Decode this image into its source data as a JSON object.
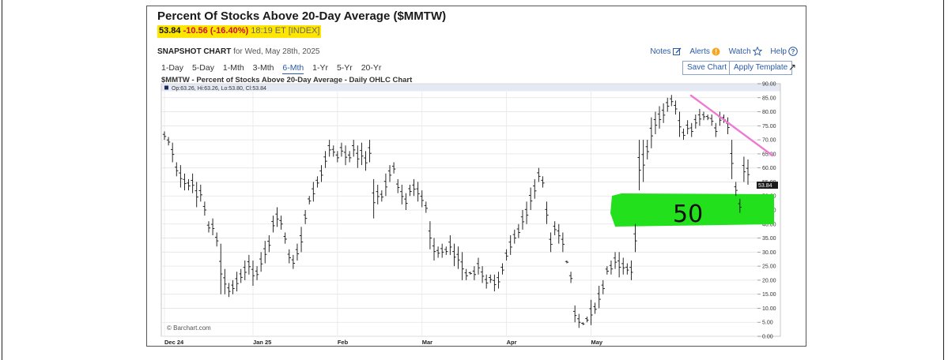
{
  "header": {
    "title": "Percent Of Stocks Above 20-Day Average ($MMTW)",
    "last": "53.84",
    "change": "-10.56 (-16.40%)",
    "time": "18:19 ET [INDEX]"
  },
  "snapshot": {
    "label": "SNAPSHOT CHART",
    "date": "for Wed, May 28th, 2025"
  },
  "links": {
    "notes": "Notes",
    "alerts": "Alerts",
    "watch": "Watch",
    "help": "Help"
  },
  "ranges": [
    "1-Day",
    "5-Day",
    "1-Mth",
    "3-Mth",
    "6-Mth",
    "1-Yr",
    "5-Yr",
    "20-Yr"
  ],
  "active_range": "6-Mth",
  "buttons": {
    "save": "Save Chart",
    "apply": "Apply Template"
  },
  "chart_title": "$MMTW - Percent of Stocks Above 20-Day Average - Daily OHLC Chart",
  "ohlc_legend": "Op:63.26, Hi:63.26, Lo:53.80, Cl:53.84",
  "watermark": "© Barchart.com",
  "annotation_text": "50",
  "colors": {
    "highlight": "#ffe600",
    "annotation_green": "#22e01c",
    "trend_line": "#ee7ad2",
    "bars": "#111111",
    "negative": "#c8102e",
    "link": "#2a5aa8"
  },
  "chart_data": {
    "type": "ohlc",
    "ylim": [
      0,
      90
    ],
    "yticks": [
      "90.00",
      "85.00",
      "80.00",
      "75.00",
      "70.00",
      "65.00",
      "60.00",
      "55.00",
      "50.00",
      "45.00",
      "40.00",
      "35.00",
      "30.00",
      "25.00",
      "20.00",
      "15.00",
      "10.00",
      "5.00",
      "0.00"
    ],
    "xticks": [
      "Dec 24",
      "Jan 25",
      "Feb",
      "Mar",
      "Apr",
      "May"
    ],
    "last_value_label": "53.84",
    "annotation_level": 50,
    "bars": [
      [
        73,
        70
      ],
      [
        71,
        68
      ],
      [
        69,
        62
      ],
      [
        62,
        57
      ],
      [
        61,
        53
      ],
      [
        58,
        52
      ],
      [
        56,
        52
      ],
      [
        58,
        51
      ],
      [
        55,
        46
      ],
      [
        54,
        48
      ],
      [
        48,
        43
      ],
      [
        41,
        37
      ],
      [
        42,
        36
      ],
      [
        37,
        32
      ],
      [
        33,
        15
      ],
      [
        24,
        15
      ],
      [
        19,
        14
      ],
      [
        20,
        15
      ],
      [
        23,
        16
      ],
      [
        24,
        19
      ],
      [
        27,
        20
      ],
      [
        29,
        22
      ],
      [
        27,
        18
      ],
      [
        25,
        20
      ],
      [
        30,
        23
      ],
      [
        34,
        26
      ],
      [
        36,
        30
      ],
      [
        43,
        37
      ],
      [
        46,
        39
      ],
      [
        43,
        38
      ],
      [
        37,
        33
      ],
      [
        31,
        26
      ],
      [
        29,
        24
      ],
      [
        33,
        27
      ],
      [
        39,
        30
      ],
      [
        45,
        40
      ],
      [
        50,
        47
      ],
      [
        55,
        48
      ],
      [
        57,
        53
      ],
      [
        61,
        55
      ],
      [
        66,
        60
      ],
      [
        70,
        64
      ],
      [
        68,
        64
      ],
      [
        66,
        62
      ],
      [
        69,
        64
      ],
      [
        68,
        61
      ],
      [
        66,
        62
      ],
      [
        70,
        64
      ],
      [
        68,
        60
      ],
      [
        69,
        61
      ],
      [
        66,
        59
      ],
      [
        70,
        62
      ],
      [
        56,
        42
      ],
      [
        54,
        47
      ],
      [
        52,
        48
      ],
      [
        58,
        50
      ],
      [
        61,
        55
      ],
      [
        62,
        58
      ],
      [
        56,
        51
      ],
      [
        54,
        47
      ],
      [
        51,
        45
      ],
      [
        54,
        50
      ],
      [
        56,
        50
      ],
      [
        55,
        48
      ],
      [
        52,
        46
      ],
      [
        48,
        44
      ],
      [
        41,
        31
      ],
      [
        35,
        27
      ],
      [
        32,
        28
      ],
      [
        33,
        28
      ],
      [
        32,
        29
      ],
      [
        36,
        29
      ],
      [
        33,
        25
      ],
      [
        32,
        24
      ],
      [
        30,
        20
      ],
      [
        24,
        20
      ],
      [
        23,
        22
      ],
      [
        25,
        20
      ],
      [
        28,
        22
      ],
      [
        25,
        19
      ],
      [
        22,
        17
      ],
      [
        22,
        19
      ],
      [
        22,
        16
      ],
      [
        23,
        17
      ],
      [
        26,
        22
      ],
      [
        31,
        27
      ],
      [
        36,
        29
      ],
      [
        38,
        33
      ],
      [
        40,
        35
      ],
      [
        45,
        38
      ],
      [
        48,
        40
      ],
      [
        53,
        45
      ],
      [
        56,
        49
      ],
      [
        60,
        55
      ],
      [
        57,
        53
      ],
      [
        48,
        40
      ],
      [
        37,
        30
      ],
      [
        41,
        36
      ],
      [
        40,
        33
      ],
      [
        37,
        30
      ],
      [
        27,
        26
      ],
      [
        23,
        19
      ],
      [
        11,
        5
      ],
      [
        8,
        3
      ],
      [
        5,
        4
      ],
      [
        7,
        5
      ],
      [
        13,
        4
      ],
      [
        12,
        8
      ],
      [
        18,
        10
      ],
      [
        20,
        15
      ],
      [
        25,
        22
      ],
      [
        27,
        22
      ],
      [
        30,
        24
      ],
      [
        30,
        21
      ],
      [
        28,
        22
      ],
      [
        26,
        22
      ],
      [
        27,
        20
      ],
      [
        40,
        30
      ],
      [
        70,
        52
      ],
      [
        70,
        55
      ],
      [
        70,
        63
      ],
      [
        78,
        67
      ],
      [
        80,
        72
      ],
      [
        82,
        74
      ],
      [
        83,
        76
      ],
      [
        85,
        80
      ],
      [
        86,
        82
      ],
      [
        84,
        79
      ],
      [
        80,
        71
      ],
      [
        74,
        70
      ],
      [
        77,
        72
      ],
      [
        76,
        71
      ],
      [
        79,
        74
      ],
      [
        81,
        75
      ],
      [
        80,
        77
      ],
      [
        79,
        77
      ],
      [
        79,
        75
      ],
      [
        76,
        71
      ],
      [
        80,
        75
      ],
      [
        79,
        76
      ],
      [
        78,
        72
      ],
      [
        70,
        56
      ],
      [
        55,
        50
      ],
      [
        49,
        44
      ],
      [
        64,
        55
      ],
      [
        63,
        54
      ]
    ]
  }
}
